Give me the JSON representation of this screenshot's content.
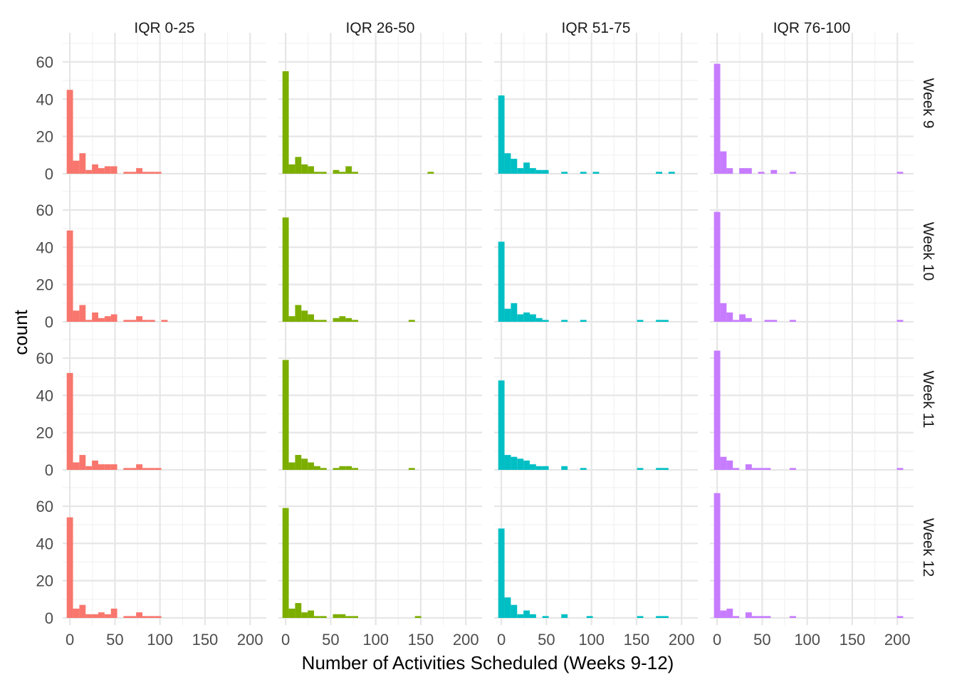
{
  "chart_data": {
    "type": "histogram",
    "title": "",
    "xlabel": "Number of Activities Scheduled (Weeks 9-12)",
    "ylabel": "count",
    "xlim": [
      -8,
      218
    ],
    "ylim": [
      0,
      70
    ],
    "x_ticks": [
      0,
      50,
      100,
      150,
      200
    ],
    "y_ticks": [
      0,
      20,
      40,
      60
    ],
    "grid": true,
    "legend": "none",
    "bin_width": 7,
    "columns": [
      {
        "label": "IQR 0-25",
        "color": "#F8766D"
      },
      {
        "label": "IQR 26-50",
        "color": "#7CAE00"
      },
      {
        "label": "IQR 51-75",
        "color": "#00BFC4"
      },
      {
        "label": "IQR 76-100",
        "color": "#C77CFF"
      }
    ],
    "rows": [
      {
        "label": "Week 9"
      },
      {
        "label": "Week 10"
      },
      {
        "label": "Week 11"
      },
      {
        "label": "Week 12"
      }
    ],
    "panels": [
      [
        {
          "bins": [
            0,
            7,
            14,
            21,
            28,
            35,
            42,
            49,
            63,
            70,
            77,
            84,
            91,
            98
          ],
          "counts": [
            45,
            7,
            11,
            2,
            5,
            3,
            4,
            4,
            1,
            1,
            3,
            1,
            1,
            1
          ]
        },
        {
          "bins": [
            0,
            7,
            14,
            21,
            28,
            35,
            42,
            56,
            63,
            70,
            77,
            161
          ],
          "counts": [
            55,
            5,
            9,
            5,
            4,
            1,
            1,
            2,
            1,
            4,
            1,
            1
          ]
        },
        {
          "bins": [
            0,
            7,
            14,
            21,
            28,
            35,
            42,
            49,
            70,
            91,
            105,
            175,
            189
          ],
          "counts": [
            42,
            11,
            8,
            3,
            6,
            3,
            2,
            2,
            1,
            1,
            1,
            1,
            1
          ]
        },
        {
          "bins": [
            0,
            7,
            14,
            28,
            35,
            49,
            63,
            84,
            203
          ],
          "counts": [
            59,
            12,
            3,
            3,
            3,
            1,
            2,
            1,
            1
          ]
        }
      ],
      [
        {
          "bins": [
            0,
            7,
            14,
            21,
            28,
            35,
            42,
            49,
            63,
            70,
            77,
            84,
            91,
            105
          ],
          "counts": [
            49,
            6,
            9,
            1,
            5,
            2,
            3,
            4,
            1,
            1,
            3,
            1,
            1,
            1
          ]
        },
        {
          "bins": [
            0,
            7,
            14,
            21,
            28,
            35,
            42,
            56,
            63,
            70,
            77,
            140
          ],
          "counts": [
            56,
            3,
            9,
            6,
            4,
            1,
            1,
            2,
            3,
            2,
            1,
            1
          ]
        },
        {
          "bins": [
            0,
            7,
            14,
            21,
            28,
            35,
            42,
            49,
            70,
            91,
            154,
            175,
            182
          ],
          "counts": [
            43,
            7,
            10,
            4,
            5,
            4,
            2,
            1,
            1,
            1,
            1,
            1,
            1
          ]
        },
        {
          "bins": [
            0,
            7,
            14,
            21,
            28,
            35,
            56,
            63,
            84,
            203
          ],
          "counts": [
            59,
            10,
            5,
            1,
            4,
            2,
            1,
            1,
            1,
            1
          ]
        }
      ],
      [
        {
          "bins": [
            0,
            7,
            14,
            21,
            28,
            35,
            42,
            49,
            63,
            70,
            77,
            84,
            91,
            98
          ],
          "counts": [
            52,
            4,
            8,
            2,
            5,
            3,
            3,
            3,
            1,
            1,
            3,
            1,
            1,
            1
          ]
        },
        {
          "bins": [
            0,
            7,
            14,
            21,
            28,
            35,
            42,
            56,
            63,
            70,
            77,
            140
          ],
          "counts": [
            59,
            4,
            8,
            6,
            4,
            2,
            1,
            1,
            2,
            2,
            1,
            1
          ]
        },
        {
          "bins": [
            0,
            7,
            14,
            21,
            28,
            35,
            42,
            49,
            70,
            91,
            154,
            175,
            182
          ],
          "counts": [
            48,
            8,
            7,
            6,
            5,
            3,
            2,
            2,
            2,
            1,
            1,
            1,
            1
          ]
        },
        {
          "bins": [
            0,
            7,
            14,
            21,
            35,
            42,
            49,
            56,
            84,
            203
          ],
          "counts": [
            64,
            7,
            5,
            1,
            3,
            1,
            1,
            1,
            1,
            1
          ]
        }
      ],
      [
        {
          "bins": [
            0,
            7,
            14,
            21,
            28,
            35,
            42,
            49,
            63,
            70,
            77,
            84,
            91,
            98
          ],
          "counts": [
            54,
            5,
            7,
            2,
            2,
            3,
            2,
            5,
            1,
            1,
            3,
            1,
            1,
            1
          ]
        },
        {
          "bins": [
            0,
            7,
            14,
            21,
            28,
            35,
            42,
            56,
            63,
            70,
            77,
            147
          ],
          "counts": [
            59,
            5,
            8,
            3,
            4,
            1,
            1,
            2,
            2,
            1,
            1,
            1
          ]
        },
        {
          "bins": [
            0,
            7,
            14,
            21,
            28,
            35,
            49,
            70,
            98,
            154,
            175,
            182
          ],
          "counts": [
            48,
            11,
            7,
            2,
            4,
            2,
            1,
            2,
            1,
            1,
            1,
            1
          ]
        },
        {
          "bins": [
            0,
            7,
            14,
            21,
            35,
            42,
            49,
            56,
            84,
            203
          ],
          "counts": [
            67,
            4,
            5,
            1,
            3,
            1,
            1,
            1,
            1,
            1
          ]
        }
      ]
    ]
  }
}
